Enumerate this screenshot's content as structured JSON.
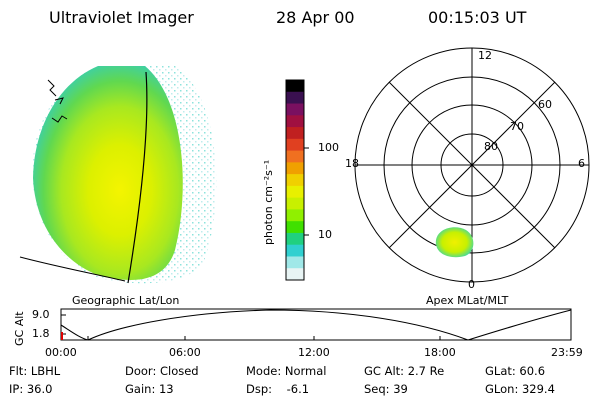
{
  "header": {
    "title": "Ultraviolet Imager",
    "date": "28 Apr 00",
    "time": "00:15:03 UT"
  },
  "colorbar": {
    "label": "photon cm⁻²s⁻¹",
    "ticks": [
      "100",
      "10"
    ],
    "colors": [
      "#000000",
      "#3a1050",
      "#7a1060",
      "#a01040",
      "#c02020",
      "#e04020",
      "#f07020",
      "#f0a000",
      "#f0d000",
      "#e8f000",
      "#c8f000",
      "#90f000",
      "#40e000",
      "#20d080",
      "#30d0d0",
      "#a0e8e8",
      "#e8f4f4"
    ]
  },
  "polar": {
    "mlt_labels": {
      "top": "12",
      "left": "18",
      "right": "6",
      "bottom": "0"
    },
    "lat_labels": [
      "60",
      "70",
      "80"
    ]
  },
  "labels": {
    "geo": "Geographic Lat/Lon",
    "apex": "Apex MLat/MLT"
  },
  "altplot": {
    "ylabel": "GC Alt",
    "yticks": [
      "9.0",
      "1.8"
    ],
    "xticks": [
      "00:00",
      "06:00",
      "12:00",
      "18:00",
      "23:59"
    ]
  },
  "info": {
    "row1": [
      "Flt: LBHL",
      "Door: Closed",
      "Mode: Normal",
      "GC Alt: 2.7 Re",
      "GLat:  60.6"
    ],
    "row2": [
      "IP: 36.0",
      "Gain: 13",
      "Dsp:    -6.1",
      "Seq: 39",
      "GLon: 329.4"
    ]
  }
}
